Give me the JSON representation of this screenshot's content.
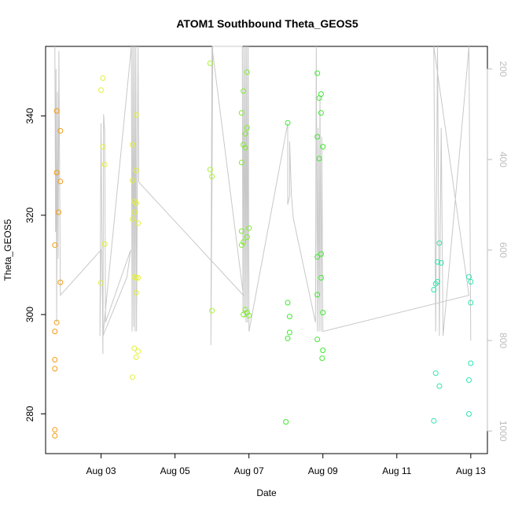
{
  "chart_data": {
    "type": "scatter",
    "title": "ATOM1 Southbound Theta_GEOS5",
    "xlabel": "Date",
    "ylabel": "Theta_GEOS5",
    "x_ticks": [
      "Aug 03",
      "Aug 05",
      "Aug 07",
      "Aug 09",
      "Aug 11",
      "Aug 13"
    ],
    "x_tick_days": [
      3,
      5,
      7,
      9,
      11,
      13
    ],
    "xlim": [
      1.5,
      13.45
    ],
    "ylim": [
      272.0,
      354.0
    ],
    "y_ticks": [
      280,
      300,
      320,
      340
    ],
    "y2_ticks": [
      200,
      400,
      600,
      800,
      1000
    ],
    "y2lim": [
      1050,
      150
    ],
    "y2_reversed": true,
    "points": [
      {
        "x": 1.8,
        "y": 341,
        "color": "#f39c12"
      },
      {
        "x": 1.9,
        "y": 337,
        "color": "#f39c12"
      },
      {
        "x": 1.8,
        "y": 328.6,
        "color": "#f39c12"
      },
      {
        "x": 1.9,
        "y": 326.8,
        "color": "#f39c12"
      },
      {
        "x": 1.85,
        "y": 320.6,
        "color": "#f39c12"
      },
      {
        "x": 1.75,
        "y": 314,
        "color": "#f39c12"
      },
      {
        "x": 1.9,
        "y": 306.5,
        "color": "#f39c12"
      },
      {
        "x": 1.8,
        "y": 298.4,
        "color": "#f39c12"
      },
      {
        "x": 1.75,
        "y": 296.6,
        "color": "#f39c12"
      },
      {
        "x": 1.75,
        "y": 290.9,
        "color": "#f39c12"
      },
      {
        "x": 1.75,
        "y": 289.1,
        "color": "#f39c12"
      },
      {
        "x": 1.75,
        "y": 276.8,
        "color": "#f39c12"
      },
      {
        "x": 1.75,
        "y": 275.6,
        "color": "#f39c12"
      },
      {
        "x": 3.05,
        "y": 347.6,
        "color": "#e3ef3a"
      },
      {
        "x": 3.0,
        "y": 345.2,
        "color": "#e3ef3a"
      },
      {
        "x": 3.05,
        "y": 333.8,
        "color": "#e3ef3a"
      },
      {
        "x": 3.1,
        "y": 330.2,
        "color": "#e3ef3a"
      },
      {
        "x": 3.1,
        "y": 314.2,
        "color": "#e3ef3a"
      },
      {
        "x": 3.0,
        "y": 306.4,
        "color": "#e3ef3a"
      },
      {
        "x": 3.95,
        "y": 340.2,
        "color": "#e3ef3a"
      },
      {
        "x": 3.85,
        "y": 334.2,
        "color": "#e3ef3a"
      },
      {
        "x": 3.95,
        "y": 329.0,
        "color": "#e3ef3a"
      },
      {
        "x": 3.85,
        "y": 327.0,
        "color": "#e3ef3a"
      },
      {
        "x": 3.9,
        "y": 322.8,
        "color": "#e3ef3a"
      },
      {
        "x": 3.95,
        "y": 322.4,
        "color": "#e3ef3a"
      },
      {
        "x": 3.9,
        "y": 320.6,
        "color": "#e3ef3a"
      },
      {
        "x": 3.85,
        "y": 319.2,
        "color": "#e3ef3a"
      },
      {
        "x": 4.0,
        "y": 318.4,
        "color": "#e3ef3a"
      },
      {
        "x": 3.9,
        "y": 307.6,
        "color": "#e3ef3a"
      },
      {
        "x": 3.95,
        "y": 307.4,
        "color": "#e3ef3a"
      },
      {
        "x": 4.0,
        "y": 307.4,
        "color": "#e3ef3a"
      },
      {
        "x": 3.95,
        "y": 304.4,
        "color": "#e3ef3a"
      },
      {
        "x": 3.9,
        "y": 293.2,
        "color": "#e3ef3a"
      },
      {
        "x": 4.0,
        "y": 292.6,
        "color": "#e3ef3a"
      },
      {
        "x": 3.95,
        "y": 291.4,
        "color": "#e3ef3a"
      },
      {
        "x": 3.85,
        "y": 287.4,
        "color": "#e3ef3a"
      },
      {
        "x": 5.95,
        "y": 350.6,
        "color": "#aaf236"
      },
      {
        "x": 5.95,
        "y": 329.2,
        "color": "#aaf236"
      },
      {
        "x": 6.0,
        "y": 327.8,
        "color": "#aaf236"
      },
      {
        "x": 6.0,
        "y": 300.8,
        "color": "#aaf236"
      },
      {
        "x": 6.95,
        "y": 348.8,
        "color": "#80ee2b"
      },
      {
        "x": 6.85,
        "y": 345.0,
        "color": "#80ee2b"
      },
      {
        "x": 6.8,
        "y": 340.6,
        "color": "#80ee2b"
      },
      {
        "x": 6.95,
        "y": 337.6,
        "color": "#80ee2b"
      },
      {
        "x": 6.9,
        "y": 336.4,
        "color": "#80ee2b"
      },
      {
        "x": 6.85,
        "y": 334.2,
        "color": "#80ee2b"
      },
      {
        "x": 6.9,
        "y": 333.6,
        "color": "#80ee2b"
      },
      {
        "x": 6.8,
        "y": 330.6,
        "color": "#80ee2b"
      },
      {
        "x": 7.0,
        "y": 317.4,
        "color": "#80ee2b"
      },
      {
        "x": 6.8,
        "y": 316.8,
        "color": "#80ee2b"
      },
      {
        "x": 6.95,
        "y": 315.6,
        "color": "#80ee2b"
      },
      {
        "x": 6.85,
        "y": 314.6,
        "color": "#80ee2b"
      },
      {
        "x": 6.8,
        "y": 314.0,
        "color": "#80ee2b"
      },
      {
        "x": 6.9,
        "y": 301.0,
        "color": "#80ee2b"
      },
      {
        "x": 6.95,
        "y": 300.4,
        "color": "#80ee2b"
      },
      {
        "x": 6.85,
        "y": 300.0,
        "color": "#80ee2b"
      },
      {
        "x": 7.0,
        "y": 299.8,
        "color": "#80ee2b"
      },
      {
        "x": 8.05,
        "y": 338.6,
        "color": "#3fe82f"
      },
      {
        "x": 8.05,
        "y": 302.4,
        "color": "#3fe82f"
      },
      {
        "x": 8.1,
        "y": 299.6,
        "color": "#3fe82f"
      },
      {
        "x": 8.1,
        "y": 296.4,
        "color": "#3fe82f"
      },
      {
        "x": 8.05,
        "y": 295.2,
        "color": "#3fe82f"
      },
      {
        "x": 8.0,
        "y": 278.4,
        "color": "#3fe82f"
      },
      {
        "x": 8.85,
        "y": 348.6,
        "color": "#3fe82f"
      },
      {
        "x": 8.95,
        "y": 344.4,
        "color": "#3fe82f"
      },
      {
        "x": 8.9,
        "y": 343.6,
        "color": "#3fe82f"
      },
      {
        "x": 8.95,
        "y": 340.6,
        "color": "#3fe82f"
      },
      {
        "x": 8.85,
        "y": 335.8,
        "color": "#3fe82f"
      },
      {
        "x": 9.0,
        "y": 333.8,
        "color": "#3fe82f"
      },
      {
        "x": 8.9,
        "y": 331.4,
        "color": "#3fe82f"
      },
      {
        "x": 8.95,
        "y": 312.2,
        "color": "#3fe82f"
      },
      {
        "x": 8.85,
        "y": 311.6,
        "color": "#3fe82f"
      },
      {
        "x": 8.95,
        "y": 307.4,
        "color": "#3fe82f"
      },
      {
        "x": 8.85,
        "y": 304.0,
        "color": "#3fe82f"
      },
      {
        "x": 9.0,
        "y": 300.4,
        "color": "#3fe82f"
      },
      {
        "x": 8.85,
        "y": 295.0,
        "color": "#3fe82f"
      },
      {
        "x": 9.0,
        "y": 292.8,
        "color": "#3fe82f"
      },
      {
        "x": 8.98,
        "y": 291.2,
        "color": "#3fe82f"
      },
      {
        "x": 12.15,
        "y": 314.4,
        "color": "#2ce6b0"
      },
      {
        "x": 12.1,
        "y": 310.6,
        "color": "#2ce6b0"
      },
      {
        "x": 12.2,
        "y": 310.4,
        "color": "#2ce6b0"
      },
      {
        "x": 12.1,
        "y": 306.6,
        "color": "#2ce6b0"
      },
      {
        "x": 12.05,
        "y": 306.2,
        "color": "#2ce6b0"
      },
      {
        "x": 12.0,
        "y": 305.0,
        "color": "#2ce6b0"
      },
      {
        "x": 12.05,
        "y": 288.2,
        "color": "#2ce6b0"
      },
      {
        "x": 12.15,
        "y": 285.6,
        "color": "#2ce6b0"
      },
      {
        "x": 12.0,
        "y": 278.6,
        "color": "#2ce6b0"
      },
      {
        "x": 12.95,
        "y": 307.6,
        "color": "#2ce6b0"
      },
      {
        "x": 13.0,
        "y": 306.6,
        "color": "#2ce6b0"
      },
      {
        "x": 13.0,
        "y": 302.4,
        "color": "#2ce6b0"
      },
      {
        "x": 13.0,
        "y": 290.2,
        "color": "#2ce6b0"
      },
      {
        "x": 12.95,
        "y": 286.8,
        "color": "#2ce6b0"
      },
      {
        "x": 12.95,
        "y": 280.0,
        "color": "#2ce6b0"
      }
    ],
    "pressure_profile_color": "#c8c8c8",
    "pressure_profile": [
      [
        1.75,
        150
      ],
      [
        1.77,
        560
      ],
      [
        1.78,
        200
      ],
      [
        1.8,
        760
      ],
      [
        1.82,
        250
      ],
      [
        1.84,
        620
      ],
      [
        1.86,
        160
      ],
      [
        1.88,
        440
      ],
      [
        1.9,
        700
      ],
      [
        3.0,
        600
      ],
      [
        2.97,
        790
      ],
      [
        3.0,
        320
      ],
      [
        3.05,
        830
      ],
      [
        3.07,
        300
      ],
      [
        3.1,
        340
      ],
      [
        3.12,
        760
      ],
      [
        3.8,
        600
      ],
      [
        3.7,
        660
      ],
      [
        3.05,
        790
      ],
      [
        3.82,
        150
      ],
      [
        3.84,
        780
      ],
      [
        3.86,
        150
      ],
      [
        3.88,
        770
      ],
      [
        3.9,
        150
      ],
      [
        3.92,
        780
      ],
      [
        3.94,
        150
      ],
      [
        3.96,
        780
      ],
      [
        4.0,
        150
      ],
      [
        4.02,
        450
      ],
      [
        6.85,
        700
      ],
      [
        6.0,
        150
      ],
      [
        5.97,
        810
      ],
      [
        6.0,
        480
      ],
      [
        6.02,
        150
      ],
      [
        6.82,
        150
      ],
      [
        6.84,
        740
      ],
      [
        6.86,
        150
      ],
      [
        6.88,
        750
      ],
      [
        6.9,
        150
      ],
      [
        6.92,
        760
      ],
      [
        6.94,
        150
      ],
      [
        6.96,
        760
      ],
      [
        6.98,
        150
      ],
      [
        7.0,
        780
      ],
      [
        8.05,
        320
      ],
      [
        8.05,
        500
      ],
      [
        8.1,
        480
      ],
      [
        8.1,
        360
      ],
      [
        8.15,
        480
      ],
      [
        8.2,
        530
      ],
      [
        8.8,
        760
      ],
      [
        8.82,
        150
      ],
      [
        8.85,
        780
      ],
      [
        8.87,
        330
      ],
      [
        8.9,
        780
      ],
      [
        8.92,
        260
      ],
      [
        8.95,
        780
      ],
      [
        8.97,
        350
      ],
      [
        9.0,
        780
      ],
      [
        12.95,
        700
      ],
      [
        12.0,
        150
      ],
      [
        12.05,
        780
      ],
      [
        12.1,
        150
      ],
      [
        12.15,
        790
      ],
      [
        12.2,
        330
      ],
      [
        12.25,
        790
      ],
      [
        12.9,
        200
      ],
      [
        12.95,
        150
      ],
      [
        13.0,
        800
      ]
    ]
  }
}
